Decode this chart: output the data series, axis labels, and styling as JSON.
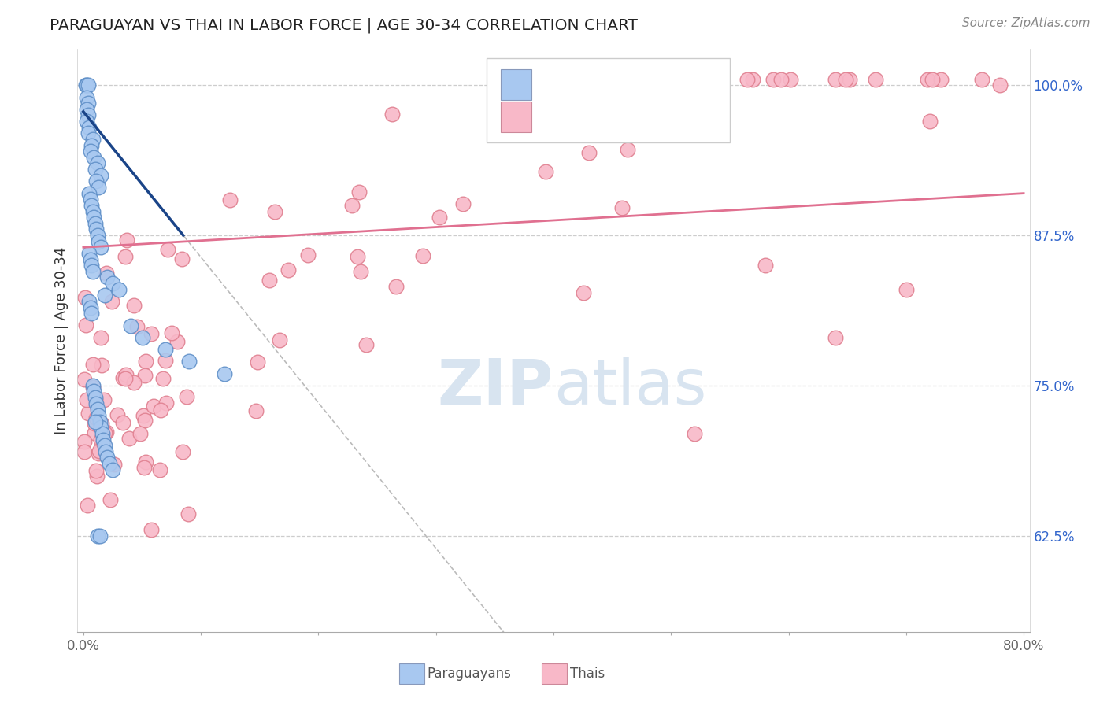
{
  "title": "PARAGUAYAN VS THAI IN LABOR FORCE | AGE 30-34 CORRELATION CHART",
  "source": "Source: ZipAtlas.com",
  "ylabel": "In Labor Force | Age 30-34",
  "xlim": [
    -0.005,
    0.805
  ],
  "ylim": [
    0.545,
    1.03
  ],
  "yticks": [
    0.625,
    0.75,
    0.875,
    1.0
  ],
  "ytick_labels": [
    "62.5%",
    "75.0%",
    "87.5%",
    "100.0%"
  ],
  "xticks": [
    0.0,
    0.1,
    0.2,
    0.3,
    0.4,
    0.5,
    0.6,
    0.7,
    0.8
  ],
  "xtick_labels": [
    "0.0%",
    "",
    "",
    "",
    "",
    "",
    "",
    "",
    "80.0%"
  ],
  "paraguayan_color": "#a8c8f0",
  "thai_color": "#f8b8c8",
  "paraguayan_edge": "#6090c8",
  "thai_edge": "#e08090",
  "blue_line_color": "#1a4488",
  "pink_line_color": "#e07090",
  "dashed_line_color": "#c8c8c8",
  "title_color": "#222222",
  "source_color": "#888888",
  "legend_r_color": "#0044aa",
  "legend_n_color": "#cc2222",
  "par_scatter_seed": 42,
  "thai_scatter_seed": 99
}
